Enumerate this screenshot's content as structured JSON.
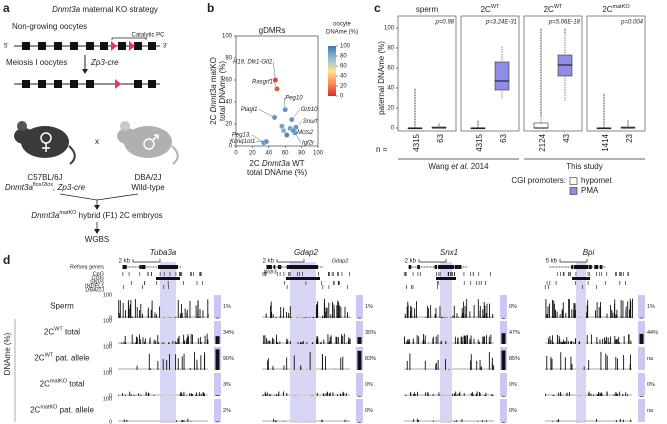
{
  "panel_a": {
    "label": "a",
    "title_gene": "Dnmt3a",
    "title_rest": " maternal KO strategy",
    "stage1": "Non-growing oocytes",
    "five_prime": "5'",
    "three_prime": "3'",
    "domain_label": "Catalytic PC",
    "stage2": "Meiosis I oocytes",
    "cre": "Zp3-cre",
    "cross": "x",
    "strain1": "C57BL/6J",
    "genotype1_gene": "Dnmt3a",
    "genotype1_sup": "flox/2lox",
    "genotype1_rest": ", Zp3-cre",
    "strain2": "DBA/2J",
    "genotype2": "Wild-type",
    "product_gene": "Dnmt3a",
    "product_sup": "matKO",
    "product_rest": " hybrid (F1) 2C embryos",
    "assay": "WGBS"
  },
  "panel_b": {
    "label": "b",
    "type": "scatter",
    "title": "gDMRs",
    "x_label_line1": [
      "2C ",
      "Dnmt3a",
      " WT"
    ],
    "x_label_line2": "total DNAme (%)",
    "y_label_line1": [
      "2C ",
      "Dnmt3a",
      " matKO"
    ],
    "y_label_line2": "total DNAme (%)",
    "xlim": [
      0,
      100
    ],
    "xticks": [
      0,
      20,
      40,
      60,
      80,
      100
    ],
    "ylim": [
      0,
      100
    ],
    "yticks": [
      0,
      20,
      40,
      60,
      80,
      100
    ],
    "points": {
      "x": [
        48,
        50,
        60,
        68,
        73,
        66,
        72,
        47,
        34,
        37,
        58,
        62,
        56,
        70
      ],
      "y": [
        60,
        52,
        33,
        24,
        17,
        16,
        12,
        26,
        3,
        4,
        14,
        10,
        18,
        14
      ],
      "oocyte": [
        5,
        10,
        90,
        90,
        90,
        85,
        90,
        90,
        90,
        90,
        80,
        95,
        85,
        90
      ]
    },
    "point_labels": [
      "H19, Dlk1-Gtl2",
      "Rasgrf1",
      "Peg10",
      "Grb10",
      "Snurf",
      "Mcts2",
      "Igf2r",
      "Plagl1",
      "Peg13,",
      "Kcnq1ot1",
      null,
      null,
      null,
      null
    ],
    "colorbar": {
      "title": [
        "oocyte",
        "DNAme (%)"
      ],
      "range": [
        0,
        100
      ],
      "ticks": [
        100,
        80,
        60,
        40,
        20,
        0
      ],
      "colors": [
        "#d73027",
        "#fc8d59",
        "#fee090",
        "#91bfdb",
        "#4575b4"
      ]
    }
  },
  "panel_c": {
    "label": "c",
    "type": "box",
    "y_label": "paternal DNAme (%)",
    "ylim": [
      0,
      100
    ],
    "yticks": [
      0,
      20,
      40,
      60,
      80,
      100
    ],
    "groups": [
      {
        "name": "sperm",
        "p": "p=0.98"
      },
      {
        "name": "2C",
        "name_sup": "WT",
        "p": "p=3.24E-31"
      },
      {
        "name": "2C",
        "name_sup": "WT",
        "p": "p=5.06E-18"
      },
      {
        "name": "2C",
        "name_sup": "matKO",
        "p": "p=0.004"
      }
    ],
    "n_prefix": "n =",
    "studies": [
      [
        "Wang ",
        "et al.",
        " 2014"
      ],
      [
        "This study"
      ]
    ],
    "legend_title": "CGI promoters:",
    "series": [
      {
        "name": "hypomet",
        "color": "#ffffff",
        "n": [
          4315,
          4315,
          2124,
          1414
        ],
        "stats": [
          [
            0,
            0,
            0,
            0,
            0
          ],
          [
            0,
            0,
            0,
            0,
            0
          ],
          [
            0,
            0,
            0,
            5,
            12
          ],
          [
            0,
            0,
            0,
            0,
            0
          ]
        ],
        "outlier_top": [
          40,
          8,
          100,
          35
        ]
      },
      {
        "name": "PMA",
        "color": "#8e8ee6",
        "n": [
          63,
          63,
          43,
          23
        ],
        "stats": [
          [
            0,
            0,
            0,
            1,
            2
          ],
          [
            30,
            38,
            47,
            66,
            82
          ],
          [
            27,
            52,
            63,
            73,
            95
          ],
          [
            0,
            0,
            0,
            1,
            2
          ]
        ],
        "outlier_top": [
          5,
          82,
          100,
          8
        ]
      }
    ]
  },
  "panel_d": {
    "label": "d",
    "y_label": "DNAme (%)",
    "annotation_tracks": [
      "Refseq genes",
      "CpG",
      "CGIs",
      "SNVs",
      "INDELs",
      "DBA/2J"
    ],
    "tracks": [
      {
        "name": "Sperm"
      },
      {
        "name": "2C",
        "sup": "WT",
        "rest": " total"
      },
      {
        "name": "2C",
        "sup": "WT",
        "rest": " pat. allele"
      },
      {
        "name": "2C",
        "sup": "matKO",
        "rest": " total"
      },
      {
        "name": "2C",
        "sup": "matKO",
        "rest": " pat. allele"
      }
    ],
    "track_ylim": [
      0,
      100
    ],
    "track_ticks": [
      0,
      100
    ],
    "loci": [
      {
        "gene": "Tuba3a",
        "scale": "2 kb",
        "values": [
          1,
          34,
          90,
          3,
          2
        ],
        "value_labels": [
          "1%",
          "34%",
          "90%",
          "3%",
          "2%"
        ]
      },
      {
        "gene": "Gdap2",
        "scale": "2 kb",
        "refseq_labels": [
          "Wdr3",
          "Gdap2"
        ],
        "values": [
          1,
          30,
          83,
          0,
          0
        ],
        "value_labels": [
          "1%",
          "30%",
          "83%",
          "0%",
          "0%"
        ]
      },
      {
        "gene": "Snx1",
        "scale": "2 kb",
        "values": [
          0,
          47,
          85,
          0,
          0
        ],
        "value_labels": [
          "0%",
          "47%",
          "85%",
          "0%",
          "0%"
        ]
      },
      {
        "gene": "Bpi",
        "scale": "5 kb",
        "values": [
          1,
          44,
          null,
          0,
          null
        ],
        "value_labels": [
          "1%",
          "44%",
          "na",
          "0%",
          "na"
        ]
      }
    ]
  }
}
